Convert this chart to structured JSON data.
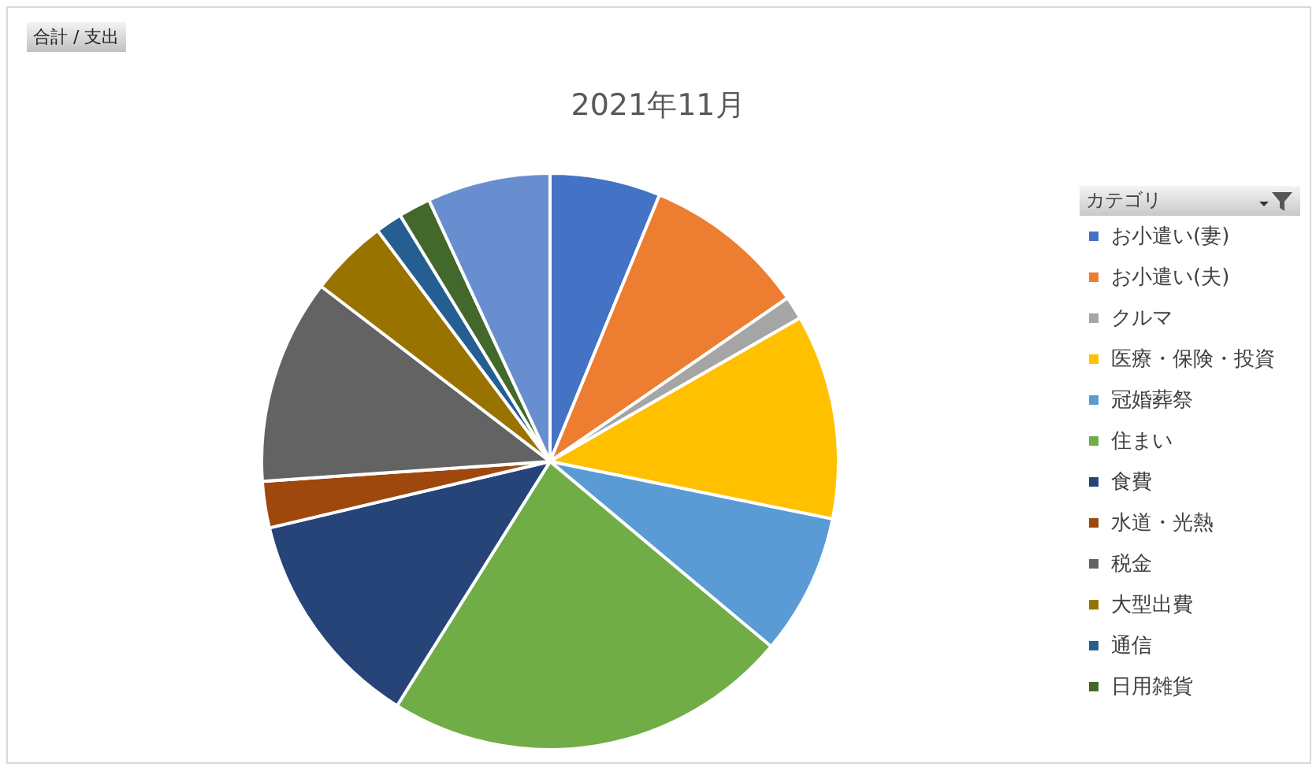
{
  "chart_data": {
    "type": "pie",
    "title": "2021年11月",
    "legend_title": "カテゴリ",
    "annotations": [
      "合計 / 支出"
    ],
    "legend": "right",
    "categories": [
      "お小遣い(妻)",
      "お小遣い(夫)",
      "クルマ",
      "医療・保険・投資",
      "冠婚葬祭",
      "住まい",
      "食費",
      "水道・光熱",
      "税金",
      "大型出費",
      "通信",
      "日用雑貨",
      null
    ],
    "values": [
      6.2,
      9.2,
      1.3,
      11.5,
      7.9,
      22.8,
      12.4,
      2.6,
      11.5,
      4.4,
      1.5,
      1.8,
      6.9
    ],
    "colors": [
      "#4472c4",
      "#ed7d31",
      "#a5a5a5",
      "#ffc000",
      "#5b9bd5",
      "#70ad47",
      "#264478",
      "#9e480e",
      "#636363",
      "#997300",
      "#255e91",
      "#43682b",
      "#698ed0"
    ]
  }
}
